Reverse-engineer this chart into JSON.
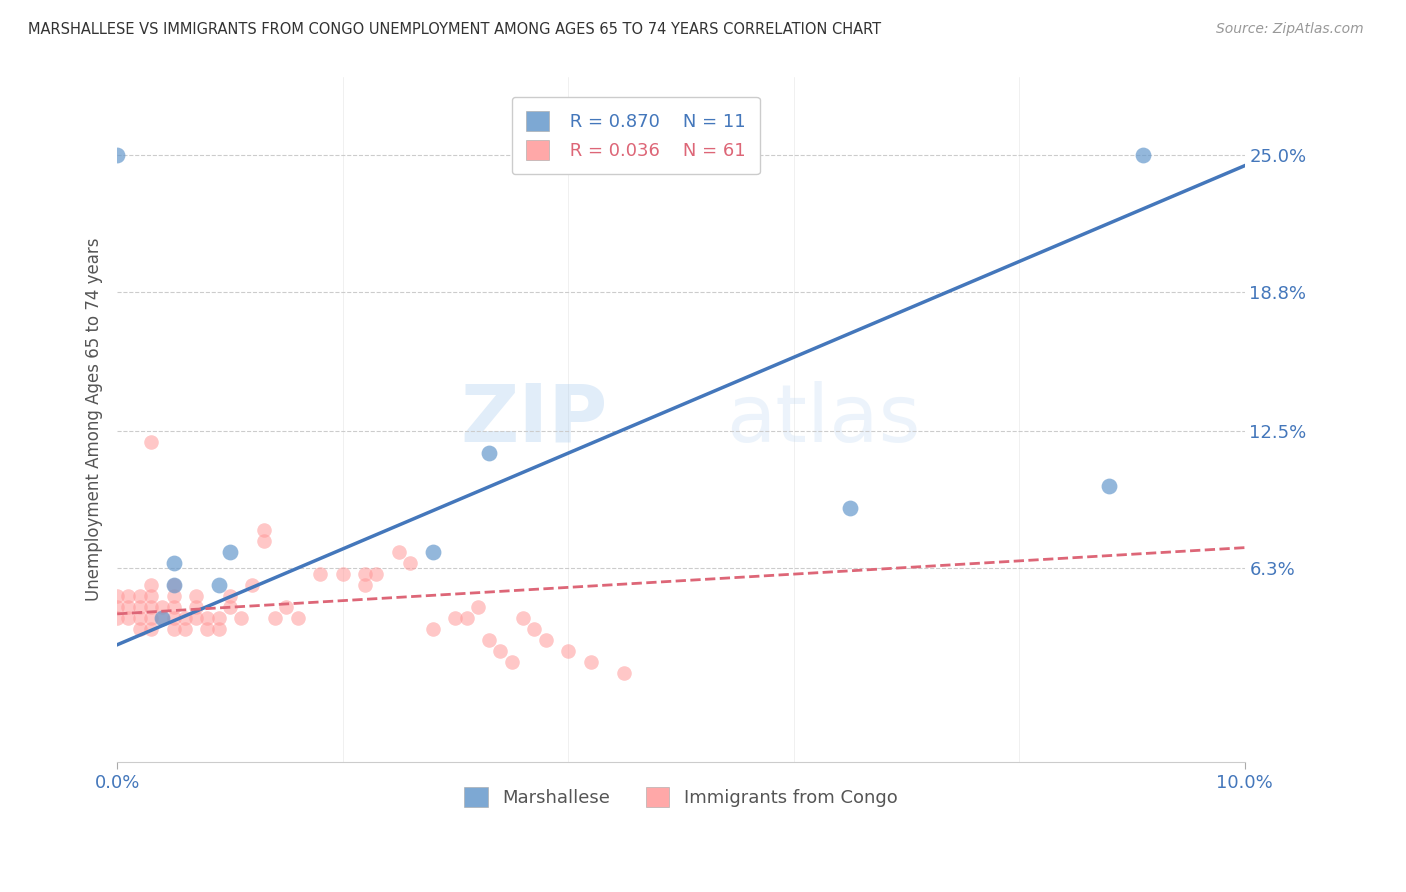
{
  "title": "MARSHALLESE VS IMMIGRANTS FROM CONGO UNEMPLOYMENT AMONG AGES 65 TO 74 YEARS CORRELATION CHART",
  "source": "Source: ZipAtlas.com",
  "ylabel": "Unemployment Among Ages 65 to 74 years",
  "legend_label_1": "Marshallese",
  "legend_label_2": "Immigrants from Congo",
  "r1": "0.870",
  "n1": "11",
  "r2": "0.036",
  "n2": "61",
  "xlim": [
    0.0,
    0.1
  ],
  "ylim": [
    -0.025,
    0.285
  ],
  "ytick_labels": [
    "25.0%",
    "18.8%",
    "12.5%",
    "6.3%"
  ],
  "ytick_vals": [
    0.25,
    0.188,
    0.125,
    0.063
  ],
  "xtick_labels": [
    "0.0%",
    "10.0%"
  ],
  "xtick_vals": [
    0.0,
    0.1
  ],
  "background_color": "#ffffff",
  "color_blue": "#6699cc",
  "color_pink": "#ff9999",
  "line_blue": "#4477bb",
  "line_pink": "#dd6677",
  "watermark_zip": "ZIP",
  "watermark_atlas": "atlas",
  "blue_scatter_x": [
    0.004,
    0.005,
    0.009,
    0.01,
    0.005,
    0.028,
    0.033,
    0.065,
    0.088,
    0.091,
    0.0
  ],
  "blue_scatter_y": [
    0.04,
    0.055,
    0.055,
    0.07,
    0.065,
    0.07,
    0.115,
    0.09,
    0.1,
    0.25,
    0.25
  ],
  "pink_scatter_x": [
    0.0,
    0.0,
    0.0,
    0.001,
    0.001,
    0.001,
    0.002,
    0.002,
    0.002,
    0.002,
    0.003,
    0.003,
    0.003,
    0.003,
    0.003,
    0.004,
    0.004,
    0.005,
    0.005,
    0.005,
    0.005,
    0.005,
    0.006,
    0.006,
    0.007,
    0.007,
    0.007,
    0.008,
    0.008,
    0.009,
    0.009,
    0.01,
    0.01,
    0.011,
    0.012,
    0.013,
    0.013,
    0.014,
    0.015,
    0.016,
    0.018,
    0.02,
    0.022,
    0.022,
    0.023,
    0.025,
    0.026,
    0.028,
    0.03,
    0.031,
    0.032,
    0.033,
    0.034,
    0.035,
    0.036,
    0.037,
    0.038,
    0.04,
    0.042,
    0.045,
    0.003
  ],
  "pink_scatter_y": [
    0.04,
    0.045,
    0.05,
    0.04,
    0.045,
    0.05,
    0.035,
    0.04,
    0.045,
    0.05,
    0.035,
    0.04,
    0.045,
    0.05,
    0.055,
    0.04,
    0.045,
    0.035,
    0.04,
    0.045,
    0.05,
    0.055,
    0.035,
    0.04,
    0.04,
    0.045,
    0.05,
    0.035,
    0.04,
    0.035,
    0.04,
    0.045,
    0.05,
    0.04,
    0.055,
    0.075,
    0.08,
    0.04,
    0.045,
    0.04,
    0.06,
    0.06,
    0.055,
    0.06,
    0.06,
    0.07,
    0.065,
    0.035,
    0.04,
    0.04,
    0.045,
    0.03,
    0.025,
    0.02,
    0.04,
    0.035,
    0.03,
    0.025,
    0.02,
    0.015,
    0.12
  ],
  "blue_trend_x": [
    0.0,
    0.1
  ],
  "blue_trend_y": [
    0.028,
    0.245
  ],
  "pink_trend_x": [
    0.0,
    0.1
  ],
  "pink_trend_y": [
    0.042,
    0.072
  ]
}
